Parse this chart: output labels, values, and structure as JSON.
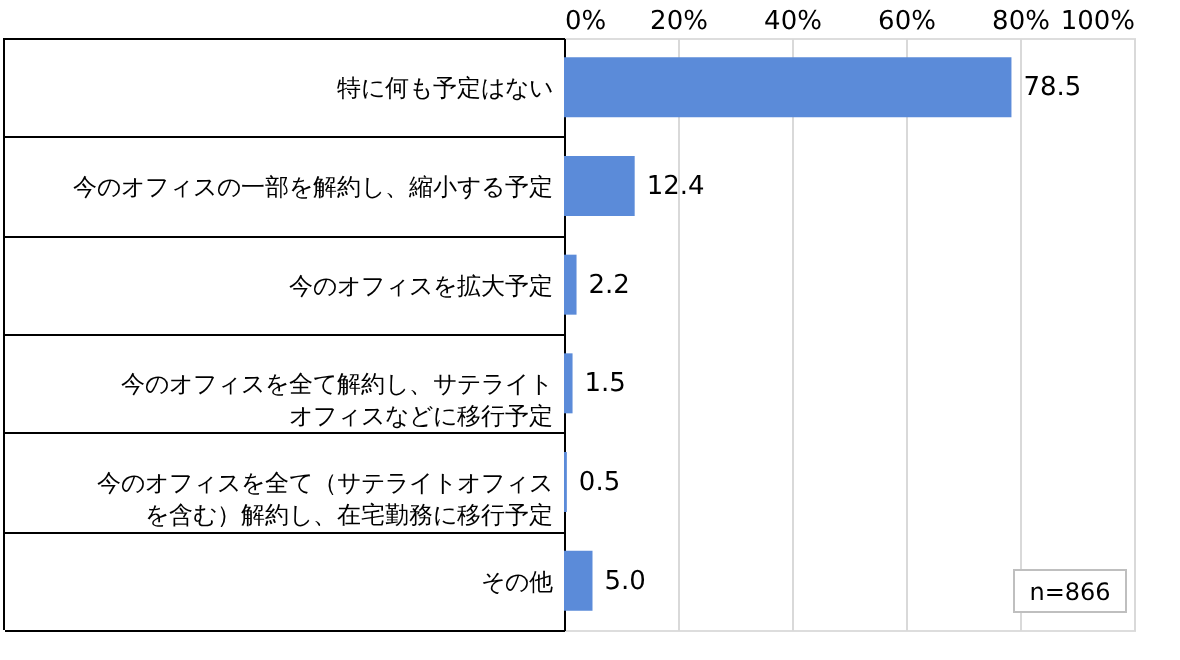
{
  "chart_data": {
    "type": "bar",
    "orientation": "horizontal",
    "categories": [
      "特に何も予定はない",
      "今のオフィスの一部を解約し、縮小する予定",
      "今のオフィスを拡大予定",
      "今のオフィスを全て解約し、サテライトオフィスなどに移行予定",
      "今のオフィスを全て（サテライトオフィスを含む）解約し、在宅勤務に移行予定",
      "その他"
    ],
    "values": [
      78.5,
      12.4,
      2.2,
      1.5,
      0.5,
      5.0
    ],
    "value_labels": [
      "78.5",
      "12.4",
      "2.2",
      "1.5",
      "0.5",
      "5.0"
    ],
    "color": "#5b8bd9",
    "xlim": [
      0,
      100
    ],
    "xticks": [
      {
        "value": 0,
        "label": "0%"
      },
      {
        "value": 20,
        "label": "20%"
      },
      {
        "value": 40,
        "label": "40%"
      },
      {
        "value": 60,
        "label": "60%"
      },
      {
        "value": 80,
        "label": "80%"
      },
      {
        "value": 100,
        "label": "100%"
      }
    ],
    "grid": "x",
    "annotations": [
      "n=866"
    ]
  }
}
